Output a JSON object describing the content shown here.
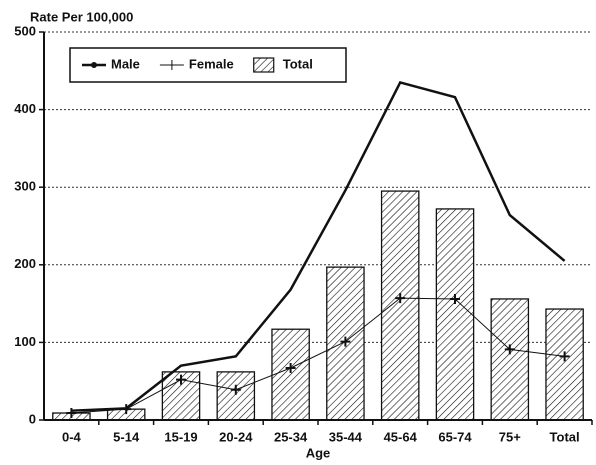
{
  "chart_data": {
    "type": "bar",
    "ylabel": "Rate Per 100,000",
    "xlabel": "Age",
    "categories": [
      "0-4",
      "5-14",
      "15-19",
      "20-24",
      "25-34",
      "35-44",
      "45-64",
      "65-74",
      "75+",
      "Total"
    ],
    "series": [
      {
        "name": "Male",
        "type": "line",
        "color": "#111111",
        "values": [
          12,
          15,
          70,
          82,
          168,
          296,
          435,
          416,
          264,
          205
        ]
      },
      {
        "name": "Female",
        "type": "line",
        "marker": "+",
        "color": "#111111",
        "values": [
          9,
          14,
          52,
          39,
          67,
          101,
          157,
          156,
          91,
          82
        ]
      },
      {
        "name": "Total",
        "type": "bar",
        "color": "#111111",
        "values": [
          9,
          14,
          62,
          62,
          117,
          197,
          295,
          272,
          156,
          143
        ]
      }
    ],
    "ylim": [
      0,
      500
    ],
    "yticks": [
      0,
      100,
      200,
      300,
      400,
      500
    ],
    "grid": true,
    "legend": "top-left"
  }
}
